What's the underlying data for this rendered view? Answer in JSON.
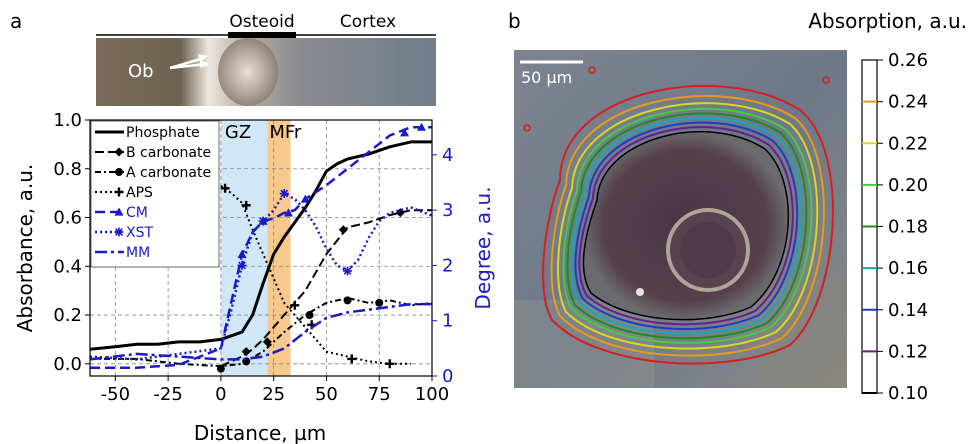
{
  "panel_a": {
    "label": "a",
    "image_labels": {
      "osteoid": "Osteoid",
      "cortex": "Cortex",
      "ob": "Ob"
    },
    "zones": [
      {
        "label": "GZ",
        "x0": 0,
        "x1": 22,
        "color": "#cfe7f7"
      },
      {
        "label": "MFr",
        "x0": 22,
        "x1": 33,
        "color": "#f7c98d"
      }
    ]
  },
  "panel_b": {
    "label": "b",
    "scalebar_label": "50 µm",
    "colorbar": {
      "title": "Absorption, a.u.",
      "ticks": [
        "0.26",
        "0.24",
        "0.22",
        "0.20",
        "0.18",
        "0.16",
        "0.14",
        "0.12",
        "0.10"
      ],
      "colors": [
        "#e89a1a",
        "#d8d81e",
        "#46c946",
        "#1e8c1e",
        "#14a8b4",
        "#1e3cc8",
        "#6a1e8c",
        "#000000"
      ]
    }
  },
  "chart_data": {
    "type": "line",
    "xlabel": "Distance, µm",
    "ylabel": "Absorbance, a.u.",
    "y2label": "Degree, a.u.",
    "xlim": [
      -62,
      100
    ],
    "ylim": [
      -0.05,
      1.0
    ],
    "y2lim": [
      0,
      4.63
    ],
    "xticks": [
      "-50",
      "-25",
      "0",
      "25",
      "50",
      "75",
      "100"
    ],
    "yticks": [
      "0.0",
      "0.2",
      "0.4",
      "0.6",
      "0.8",
      "1.0"
    ],
    "y2ticks": [
      "0",
      "1",
      "2",
      "3",
      "4"
    ],
    "grid": true,
    "legend_position": "upper-left",
    "series": [
      {
        "name": "Phosphate",
        "axis": "left",
        "color": "#000000",
        "dash": "",
        "width": 3,
        "marker": "",
        "x": [
          -62,
          -50,
          -40,
          -30,
          -20,
          -10,
          0,
          10,
          15,
          20,
          25,
          30,
          35,
          40,
          45,
          50,
          55,
          60,
          70,
          80,
          90,
          100
        ],
        "y": [
          0.06,
          0.07,
          0.08,
          0.08,
          0.09,
          0.09,
          0.1,
          0.13,
          0.2,
          0.33,
          0.45,
          0.52,
          0.58,
          0.64,
          0.71,
          0.79,
          0.82,
          0.84,
          0.86,
          0.89,
          0.91,
          0.91
        ]
      },
      {
        "name": "B carbonate",
        "axis": "left",
        "color": "#000000",
        "dash": "9 4",
        "width": 2,
        "marker": "diamond",
        "x": [
          0,
          5,
          10,
          15,
          20,
          25,
          30,
          40,
          50,
          60,
          70,
          80,
          90,
          100
        ],
        "y": [
          -0.01,
          0.01,
          0.03,
          0.06,
          0.1,
          0.15,
          0.2,
          0.3,
          0.45,
          0.56,
          0.58,
          0.61,
          0.63,
          0.63
        ],
        "marker_x": [
          12,
          22,
          58,
          85
        ],
        "marker_y": [
          0.05,
          0.09,
          0.55,
          0.62
        ]
      },
      {
        "name": "A carbonate",
        "axis": "left",
        "color": "#000000",
        "dash": "6 3 2 3",
        "width": 2,
        "marker": "circle",
        "x": [
          -62,
          -40,
          -20,
          0,
          10,
          20,
          30,
          40,
          50,
          60,
          70,
          80,
          90,
          100
        ],
        "y": [
          0.02,
          0.02,
          0.0,
          -0.01,
          0.0,
          0.05,
          0.13,
          0.2,
          0.25,
          0.27,
          0.25,
          0.26,
          0.24,
          0.25
        ],
        "marker_x": [
          0,
          12,
          42,
          60,
          75
        ],
        "marker_y": [
          -0.02,
          0.01,
          0.2,
          0.26,
          0.25
        ]
      },
      {
        "name": "APS",
        "axis": "left",
        "color": "#000000",
        "dash": "2 3",
        "width": 2,
        "marker": "plus",
        "x": [
          0,
          5,
          10,
          15,
          20,
          25,
          30,
          40,
          45,
          50,
          60,
          70,
          80,
          90
        ],
        "y": [
          0.73,
          0.7,
          0.66,
          0.55,
          0.45,
          0.35,
          0.25,
          0.15,
          0.1,
          0.05,
          0.03,
          0.01,
          0.0,
          0.0
        ],
        "marker_x": [
          2,
          12,
          35,
          43,
          62,
          80
        ],
        "marker_y": [
          0.72,
          0.65,
          0.24,
          0.16,
          0.02,
          0.0
        ]
      },
      {
        "name": "CM",
        "axis": "right",
        "color": "#1a1acc",
        "dash": "10 5",
        "width": 2.5,
        "marker": "triangle",
        "x": [
          -62,
          -40,
          -20,
          0,
          10,
          15,
          20,
          25,
          30,
          35,
          40,
          50,
          60,
          70,
          80,
          90,
          100
        ],
        "y": [
          0.15,
          0.15,
          0.2,
          0.5,
          2.2,
          2.6,
          2.8,
          2.85,
          2.95,
          3.0,
          3.2,
          3.45,
          3.75,
          4.05,
          4.35,
          4.5,
          4.5
        ],
        "marker_x": [
          10,
          20,
          32,
          40,
          87,
          95
        ],
        "marker_y": [
          2.2,
          2.8,
          2.95,
          3.2,
          4.4,
          4.5
        ]
      },
      {
        "name": "XST",
        "axis": "right",
        "color": "#1a1acc",
        "dash": "2 3",
        "width": 2.5,
        "marker": "asterisk",
        "x": [
          -62,
          -40,
          -20,
          0,
          5,
          10,
          15,
          20,
          25,
          30,
          35,
          40,
          45,
          50,
          55,
          60,
          65,
          70,
          75,
          80,
          90,
          100
        ],
        "y": [
          0.35,
          0.3,
          0.4,
          0.5,
          1.2,
          2.0,
          2.6,
          2.8,
          3.0,
          3.3,
          3.2,
          3.0,
          2.7,
          2.3,
          2.0,
          1.9,
          2.1,
          2.5,
          2.8,
          2.95,
          3.05,
          2.9
        ],
        "marker_x": [
          10,
          20,
          30,
          60
        ],
        "marker_y": [
          2.0,
          2.8,
          3.3,
          1.9
        ]
      },
      {
        "name": "MM",
        "axis": "right",
        "color": "#1a1acc",
        "dash": "12 4 3 4",
        "width": 2.5,
        "marker": "",
        "x": [
          -62,
          -40,
          -20,
          0,
          10,
          20,
          30,
          40,
          50,
          60,
          70,
          80,
          90,
          100
        ],
        "y": [
          0.3,
          0.4,
          0.35,
          0.3,
          0.3,
          0.35,
          0.5,
          0.8,
          1.05,
          1.15,
          1.2,
          1.25,
          1.3,
          1.3
        ],
        "marker_x": [],
        "marker_y": []
      }
    ]
  }
}
